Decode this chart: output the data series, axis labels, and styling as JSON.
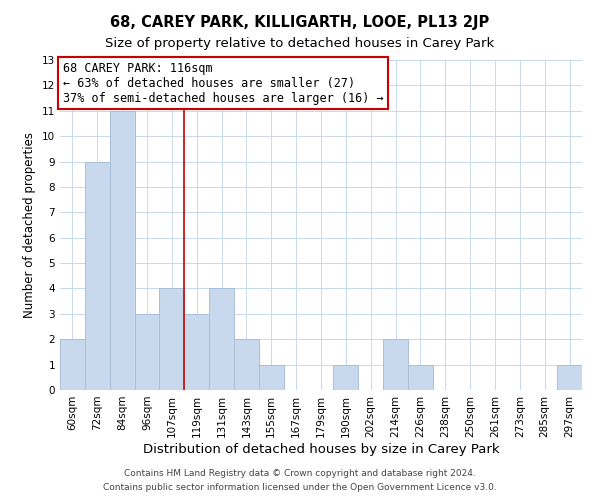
{
  "title": "68, CAREY PARK, KILLIGARTH, LOOE, PL13 2JP",
  "subtitle": "Size of property relative to detached houses in Carey Park",
  "xlabel": "Distribution of detached houses by size in Carey Park",
  "ylabel": "Number of detached properties",
  "bar_labels": [
    "60sqm",
    "72sqm",
    "84sqm",
    "96sqm",
    "107sqm",
    "119sqm",
    "131sqm",
    "143sqm",
    "155sqm",
    "167sqm",
    "179sqm",
    "190sqm",
    "202sqm",
    "214sqm",
    "226sqm",
    "238sqm",
    "250sqm",
    "261sqm",
    "273sqm",
    "285sqm",
    "297sqm"
  ],
  "bar_values": [
    2,
    9,
    11,
    3,
    4,
    3,
    4,
    2,
    1,
    0,
    0,
    1,
    0,
    2,
    1,
    0,
    0,
    0,
    0,
    0,
    1
  ],
  "bar_color": "#c8d9ee",
  "bar_edge_color": "#aabfd8",
  "ref_line_color": "#cc0000",
  "ylim": [
    0,
    13
  ],
  "yticks": [
    0,
    1,
    2,
    3,
    4,
    5,
    6,
    7,
    8,
    9,
    10,
    11,
    12,
    13
  ],
  "annotation_line1": "68 CAREY PARK: 116sqm",
  "annotation_line2": "← 63% of detached houses are smaller (27)",
  "annotation_line3": "37% of semi-detached houses are larger (16) →",
  "footer_line1": "Contains HM Land Registry data © Crown copyright and database right 2024.",
  "footer_line2": "Contains public sector information licensed under the Open Government Licence v3.0.",
  "background_color": "#ffffff",
  "grid_color": "#c8d9ee",
  "title_fontsize": 10.5,
  "subtitle_fontsize": 9.5,
  "xlabel_fontsize": 9.5,
  "ylabel_fontsize": 8.5,
  "tick_fontsize": 7.5,
  "annotation_fontsize": 8.5,
  "footer_fontsize": 6.5
}
